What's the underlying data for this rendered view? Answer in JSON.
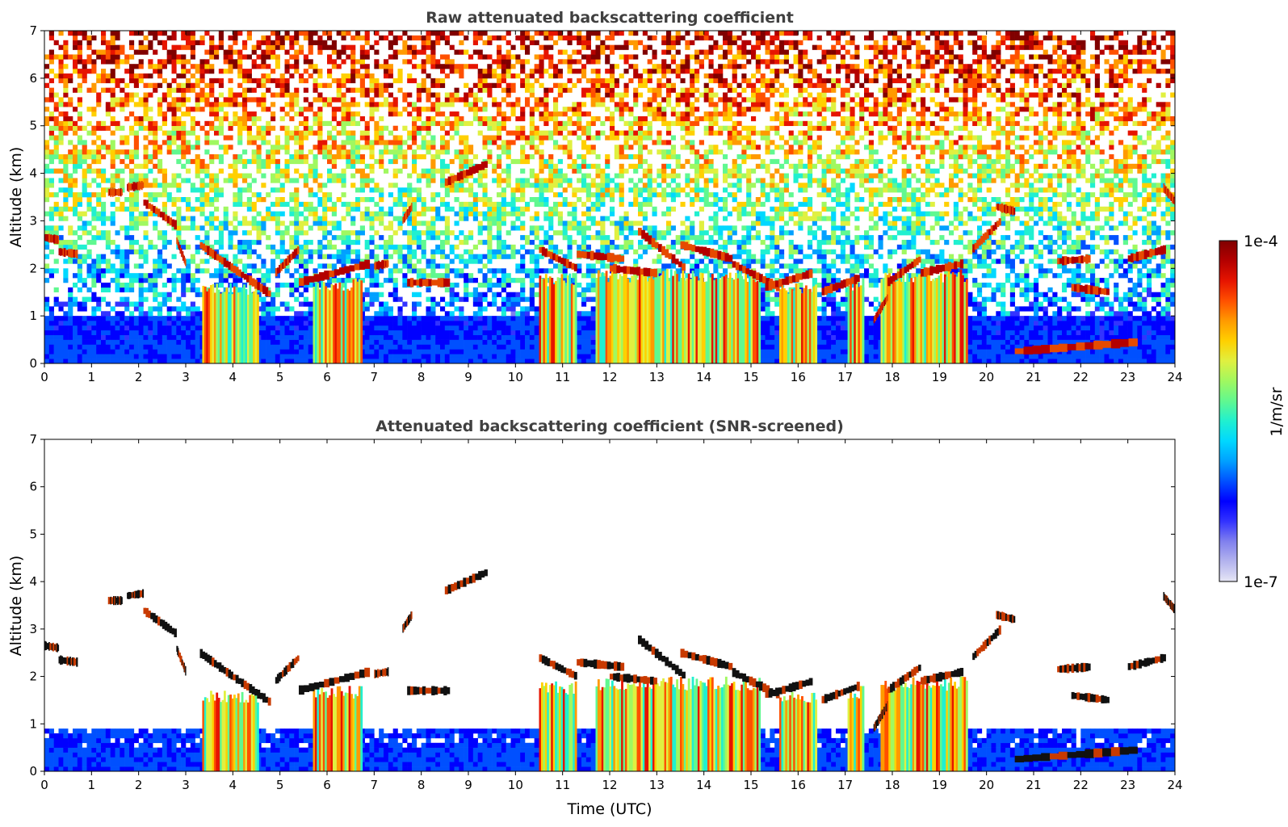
{
  "chart_data": [
    {
      "type": "heatmap",
      "title": "Raw attenuated backscattering coefficient",
      "xlabel": "",
      "ylabel": "Altitude (km)",
      "xlim": [
        0,
        24
      ],
      "ylim": [
        0,
        7
      ],
      "x_ticks": [
        "0",
        "1",
        "2",
        "3",
        "4",
        "5",
        "6",
        "7",
        "8",
        "9",
        "10",
        "11",
        "12",
        "13",
        "14",
        "15",
        "16",
        "17",
        "18",
        "19",
        "20",
        "21",
        "22",
        "23",
        "24"
      ],
      "y_ticks": [
        "0",
        "1",
        "2",
        "3",
        "4",
        "5",
        "6",
        "7"
      ],
      "screened": false,
      "cloud_layers": [
        {
          "x": [
            0.0,
            0.3
          ],
          "y": [
            2.65,
            2.6
          ]
        },
        {
          "x": [
            0.3,
            0.7
          ],
          "y": [
            2.35,
            2.3
          ]
        },
        {
          "x": [
            1.35,
            1.65
          ],
          "y": [
            3.6,
            3.6
          ]
        },
        {
          "x": [
            1.75,
            2.1
          ],
          "y": [
            3.7,
            3.75
          ]
        },
        {
          "x": [
            2.1,
            2.8
          ],
          "y": [
            3.4,
            2.9
          ]
        },
        {
          "x": [
            2.8,
            3.0
          ],
          "y": [
            2.6,
            2.1
          ]
        },
        {
          "x": [
            3.3,
            4.0
          ],
          "y": [
            2.5,
            2.0
          ]
        },
        {
          "x": [
            4.0,
            4.8
          ],
          "y": [
            2.0,
            1.45
          ]
        },
        {
          "x": [
            4.9,
            5.4
          ],
          "y": [
            1.9,
            2.4
          ]
        },
        {
          "x": [
            5.4,
            6.9
          ],
          "y": [
            1.7,
            2.1
          ]
        },
        {
          "x": [
            7.0,
            7.3
          ],
          "y": [
            2.05,
            2.1
          ]
        },
        {
          "x": [
            7.6,
            7.8
          ],
          "y": [
            3.0,
            3.3
          ]
        },
        {
          "x": [
            7.7,
            8.6
          ],
          "y": [
            1.7,
            1.7
          ]
        },
        {
          "x": [
            8.5,
            9.4
          ],
          "y": [
            3.8,
            4.2
          ]
        },
        {
          "x": [
            10.5,
            11.3
          ],
          "y": [
            2.4,
            2.0
          ]
        },
        {
          "x": [
            11.3,
            12.3
          ],
          "y": [
            2.3,
            2.2
          ]
        },
        {
          "x": [
            12.0,
            13.0
          ],
          "y": [
            2.0,
            1.9
          ]
        },
        {
          "x": [
            12.6,
            13.6
          ],
          "y": [
            2.8,
            2.0
          ]
        },
        {
          "x": [
            13.5,
            14.6
          ],
          "y": [
            2.5,
            2.2
          ]
        },
        {
          "x": [
            14.6,
            15.6
          ],
          "y": [
            2.1,
            1.6
          ]
        },
        {
          "x": [
            15.3,
            16.3
          ],
          "y": [
            1.6,
            1.9
          ]
        },
        {
          "x": [
            16.5,
            17.3
          ],
          "y": [
            1.5,
            1.8
          ]
        },
        {
          "x": [
            17.6,
            17.9
          ],
          "y": [
            0.9,
            1.4
          ]
        },
        {
          "x": [
            17.9,
            18.6
          ],
          "y": [
            1.7,
            2.2
          ]
        },
        {
          "x": [
            18.6,
            19.5
          ],
          "y": [
            1.9,
            2.1
          ]
        },
        {
          "x": [
            19.7,
            20.3
          ],
          "y": [
            2.4,
            3.0
          ]
        },
        {
          "x": [
            20.2,
            20.6
          ],
          "y": [
            3.3,
            3.2
          ]
        },
        {
          "x": [
            20.6,
            23.2
          ],
          "y": [
            0.25,
            0.45
          ]
        },
        {
          "x": [
            21.5,
            22.2
          ],
          "y": [
            2.15,
            2.2
          ]
        },
        {
          "x": [
            21.8,
            22.6
          ],
          "y": [
            1.6,
            1.5
          ]
        },
        {
          "x": [
            23.0,
            23.8
          ],
          "y": [
            2.2,
            2.4
          ]
        },
        {
          "x": [
            23.75,
            24.0
          ],
          "y": [
            3.7,
            3.4
          ]
        }
      ],
      "aerosol_columns": [
        {
          "x": [
            3.35,
            4.55
          ],
          "top": 1.7
        },
        {
          "x": [
            5.7,
            6.75
          ],
          "top": 1.8
        },
        {
          "x": [
            10.5,
            11.3
          ],
          "top": 1.9
        },
        {
          "x": [
            11.7,
            15.2
          ],
          "top": 2.0
        },
        {
          "x": [
            15.6,
            16.4
          ],
          "top": 1.7
        },
        {
          "x": [
            17.05,
            17.4
          ],
          "top": 1.8
        },
        {
          "x": [
            17.75,
            19.6
          ],
          "top": 2.0
        }
      ]
    },
    {
      "type": "heatmap",
      "title": "Attenuated backscattering coefficient (SNR-screened)",
      "xlabel": "Time (UTC)",
      "ylabel": "Altitude (km)",
      "xlim": [
        0,
        24
      ],
      "ylim": [
        0,
        7
      ],
      "x_ticks": [
        "0",
        "1",
        "2",
        "3",
        "4",
        "5",
        "6",
        "7",
        "8",
        "9",
        "10",
        "11",
        "12",
        "13",
        "14",
        "15",
        "16",
        "17",
        "18",
        "19",
        "20",
        "21",
        "22",
        "23",
        "24"
      ],
      "y_ticks": [
        "0",
        "1",
        "2",
        "3",
        "4",
        "5",
        "6",
        "7"
      ],
      "screened": true
    }
  ],
  "colorbar": {
    "label": "1/m/sr",
    "max_label": "1e-4",
    "min_label": "1e-7",
    "scale": "log",
    "colormap": [
      "#e6e6f5",
      "#b3b3ee",
      "#8080ee",
      "#3333ff",
      "#0000ff",
      "#0050ff",
      "#00a0ff",
      "#00d8ff",
      "#20f0d0",
      "#60f890",
      "#a0f860",
      "#e0f040",
      "#ffd000",
      "#ff9a00",
      "#ff5000",
      "#e61400",
      "#b40000",
      "#800000"
    ]
  }
}
